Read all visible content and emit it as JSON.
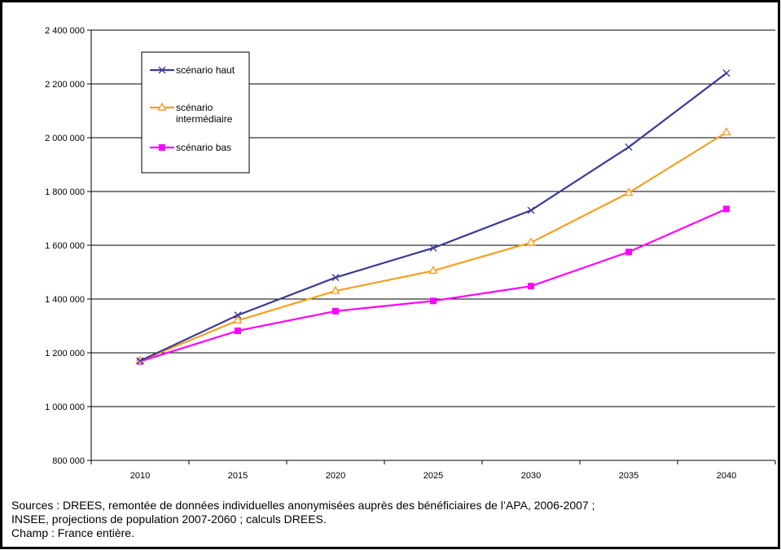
{
  "chart_data": {
    "type": "line",
    "x": [
      2010,
      2015,
      2020,
      2025,
      2030,
      2035,
      2040
    ],
    "series": [
      {
        "name": "scénario haut",
        "values": [
          1170000,
          1340000,
          1480000,
          1590000,
          1730000,
          1965000,
          2240000
        ],
        "color": "#3b3b96",
        "marker": "x"
      },
      {
        "name": "scénario intermédiaire",
        "values": [
          1170000,
          1320000,
          1430000,
          1505000,
          1610000,
          1795000,
          2020000
        ],
        "color": "#f5a020",
        "marker": "triangle"
      },
      {
        "name": "scénario bas",
        "values": [
          1168000,
          1282000,
          1355000,
          1393000,
          1448000,
          1575000,
          1735000
        ],
        "color": "#ff00ff",
        "marker": "square"
      }
    ],
    "ylim": [
      800000,
      2400000
    ],
    "yticks": [
      "800 000",
      "1 000 000",
      "1 200 000",
      "1 400 000",
      "1 600 000",
      "1 800 000",
      "2 000 000",
      "2 200 000",
      "2 400 000"
    ],
    "xticks": [
      "2010",
      "2015",
      "2020",
      "2025",
      "2030",
      "2035",
      "2040"
    ],
    "grid": true,
    "legend_position": "top-left",
    "legend_labels": [
      [
        "scénario haut"
      ],
      [
        "scénario",
        "intermédiaire"
      ],
      [
        "scénario bas"
      ]
    ]
  },
  "footer": {
    "line1": "Sources : DREES, remontée de données individuelles anonymisées auprès des bénéficiaires de l’APA, 2006-2007 ;",
    "line2": "INSEE, projections de population 2007-2060 ; calculs DREES.",
    "line3": "Champ : France entière."
  }
}
